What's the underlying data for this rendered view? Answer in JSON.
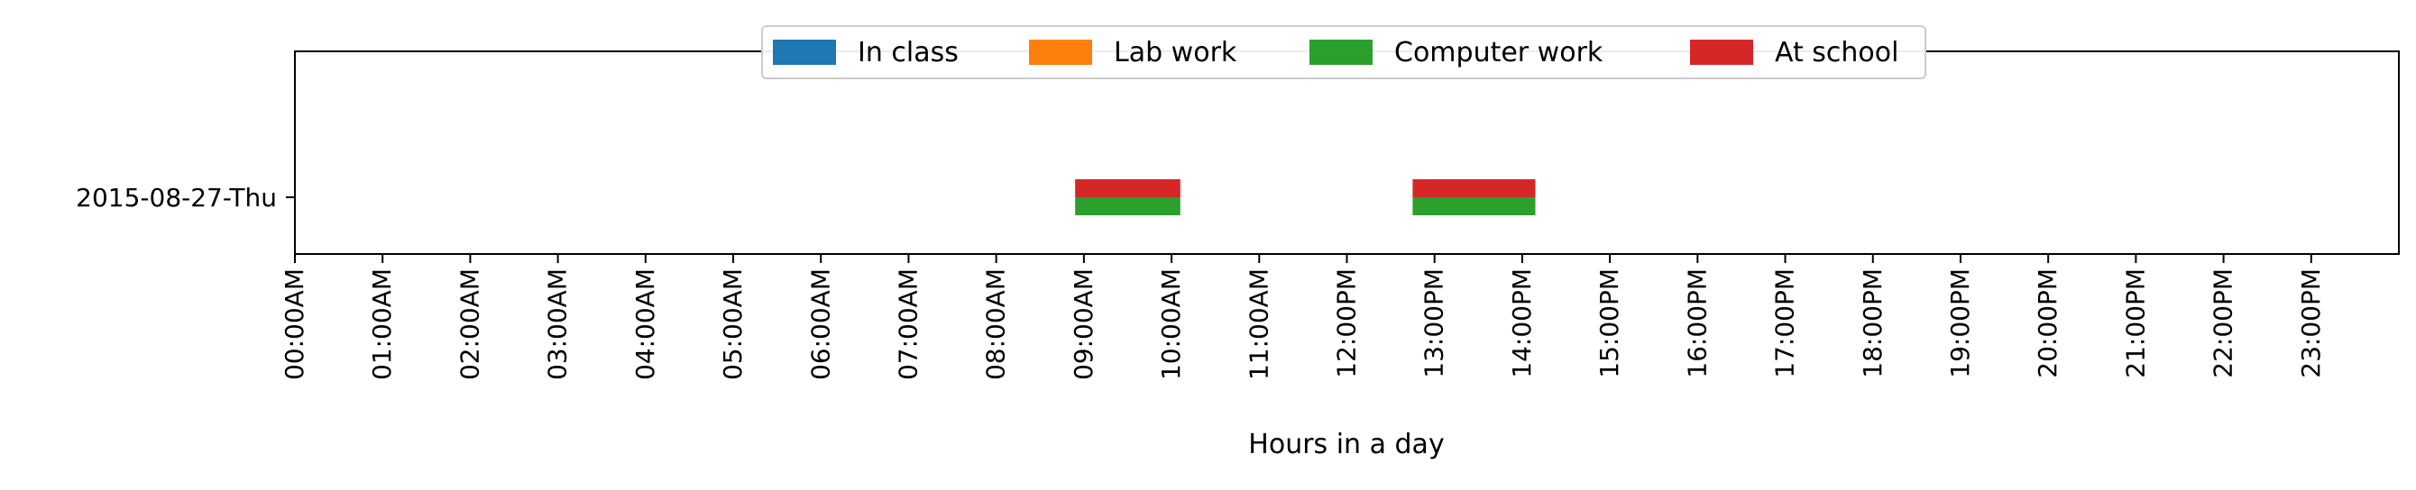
{
  "chart_data": {
    "type": "bar",
    "orientation": "horizontal-timeline",
    "title": "",
    "xlabel": "Hours in a day",
    "ylabel": "",
    "categories": [
      "2015-08-27-Thu"
    ],
    "xlim": [
      0,
      24
    ],
    "x_ticks": [
      {
        "value": 0,
        "label": "00:00AM"
      },
      {
        "value": 1,
        "label": "01:00AM"
      },
      {
        "value": 2,
        "label": "02:00AM"
      },
      {
        "value": 3,
        "label": "03:00AM"
      },
      {
        "value": 4,
        "label": "04:00AM"
      },
      {
        "value": 5,
        "label": "05:00AM"
      },
      {
        "value": 6,
        "label": "06:00AM"
      },
      {
        "value": 7,
        "label": "07:00AM"
      },
      {
        "value": 8,
        "label": "08:00AM"
      },
      {
        "value": 9,
        "label": "09:00AM"
      },
      {
        "value": 10,
        "label": "10:00AM"
      },
      {
        "value": 11,
        "label": "11:00AM"
      },
      {
        "value": 12,
        "label": "12:00PM"
      },
      {
        "value": 13,
        "label": "13:00PM"
      },
      {
        "value": 14,
        "label": "14:00PM"
      },
      {
        "value": 15,
        "label": "15:00PM"
      },
      {
        "value": 16,
        "label": "16:00PM"
      },
      {
        "value": 17,
        "label": "17:00PM"
      },
      {
        "value": 18,
        "label": "18:00PM"
      },
      {
        "value": 19,
        "label": "19:00PM"
      },
      {
        "value": 20,
        "label": "20:00PM"
      },
      {
        "value": 21,
        "label": "21:00PM"
      },
      {
        "value": 22,
        "label": "22:00PM"
      },
      {
        "value": 23,
        "label": "23:00PM"
      }
    ],
    "legend_position": "top-center",
    "grid": false,
    "series": [
      {
        "name": "In class",
        "color": "#1f77b4",
        "intervals": []
      },
      {
        "name": "Lab work",
        "color": "#ff7f0e",
        "intervals": []
      },
      {
        "name": "Computer work",
        "color": "#2ca02c",
        "intervals": [
          {
            "category": "2015-08-27-Thu",
            "start": 8.9,
            "end": 10.1
          },
          {
            "category": "2015-08-27-Thu",
            "start": 12.75,
            "end": 14.15
          }
        ]
      },
      {
        "name": "At school",
        "color": "#d62728",
        "intervals": [
          {
            "category": "2015-08-27-Thu",
            "start": 8.9,
            "end": 10.1
          },
          {
            "category": "2015-08-27-Thu",
            "start": 12.75,
            "end": 14.15
          }
        ]
      }
    ]
  }
}
